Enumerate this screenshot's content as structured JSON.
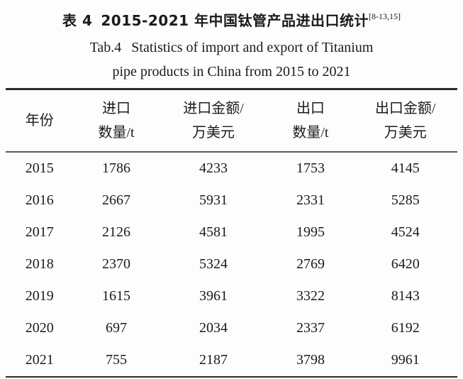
{
  "caption": {
    "zh_label": "表 4",
    "zh_text": "2015-2021 年中国钛管产品进出口统计",
    "zh_citation": "[8-13,15]",
    "en_label": "Tab.4",
    "en_line1": "Statistics of import and export of Titanium",
    "en_line2": "pipe products in China from 2015 to 2021"
  },
  "chart_data": {
    "type": "table",
    "title_zh": "表 4 2015-2021 年中国钛管产品进出口统计 [8-13,15]",
    "title_en": "Tab.4 Statistics of import and export of Titanium pipe products in China from 2015 to 2021",
    "columns": [
      {
        "line1": "年份",
        "line2": ""
      },
      {
        "line1": "进口",
        "line2": "数量/t"
      },
      {
        "line1": "进口金额/",
        "line2": "万美元"
      },
      {
        "line1": "出口",
        "line2": "数量/t"
      },
      {
        "line1": "出口金额/",
        "line2": "万美元"
      }
    ],
    "rows": [
      [
        "2015",
        "1786",
        "4233",
        "1753",
        "4145"
      ],
      [
        "2016",
        "2667",
        "5931",
        "2331",
        "5285"
      ],
      [
        "2017",
        "2126",
        "4581",
        "1995",
        "4524"
      ],
      [
        "2018",
        "2370",
        "5324",
        "2769",
        "6420"
      ],
      [
        "2019",
        "1615",
        "3961",
        "3322",
        "8143"
      ],
      [
        "2020",
        "697",
        "2034",
        "2337",
        "6192"
      ],
      [
        "2021",
        "755",
        "2187",
        "3798",
        "9961"
      ]
    ]
  }
}
